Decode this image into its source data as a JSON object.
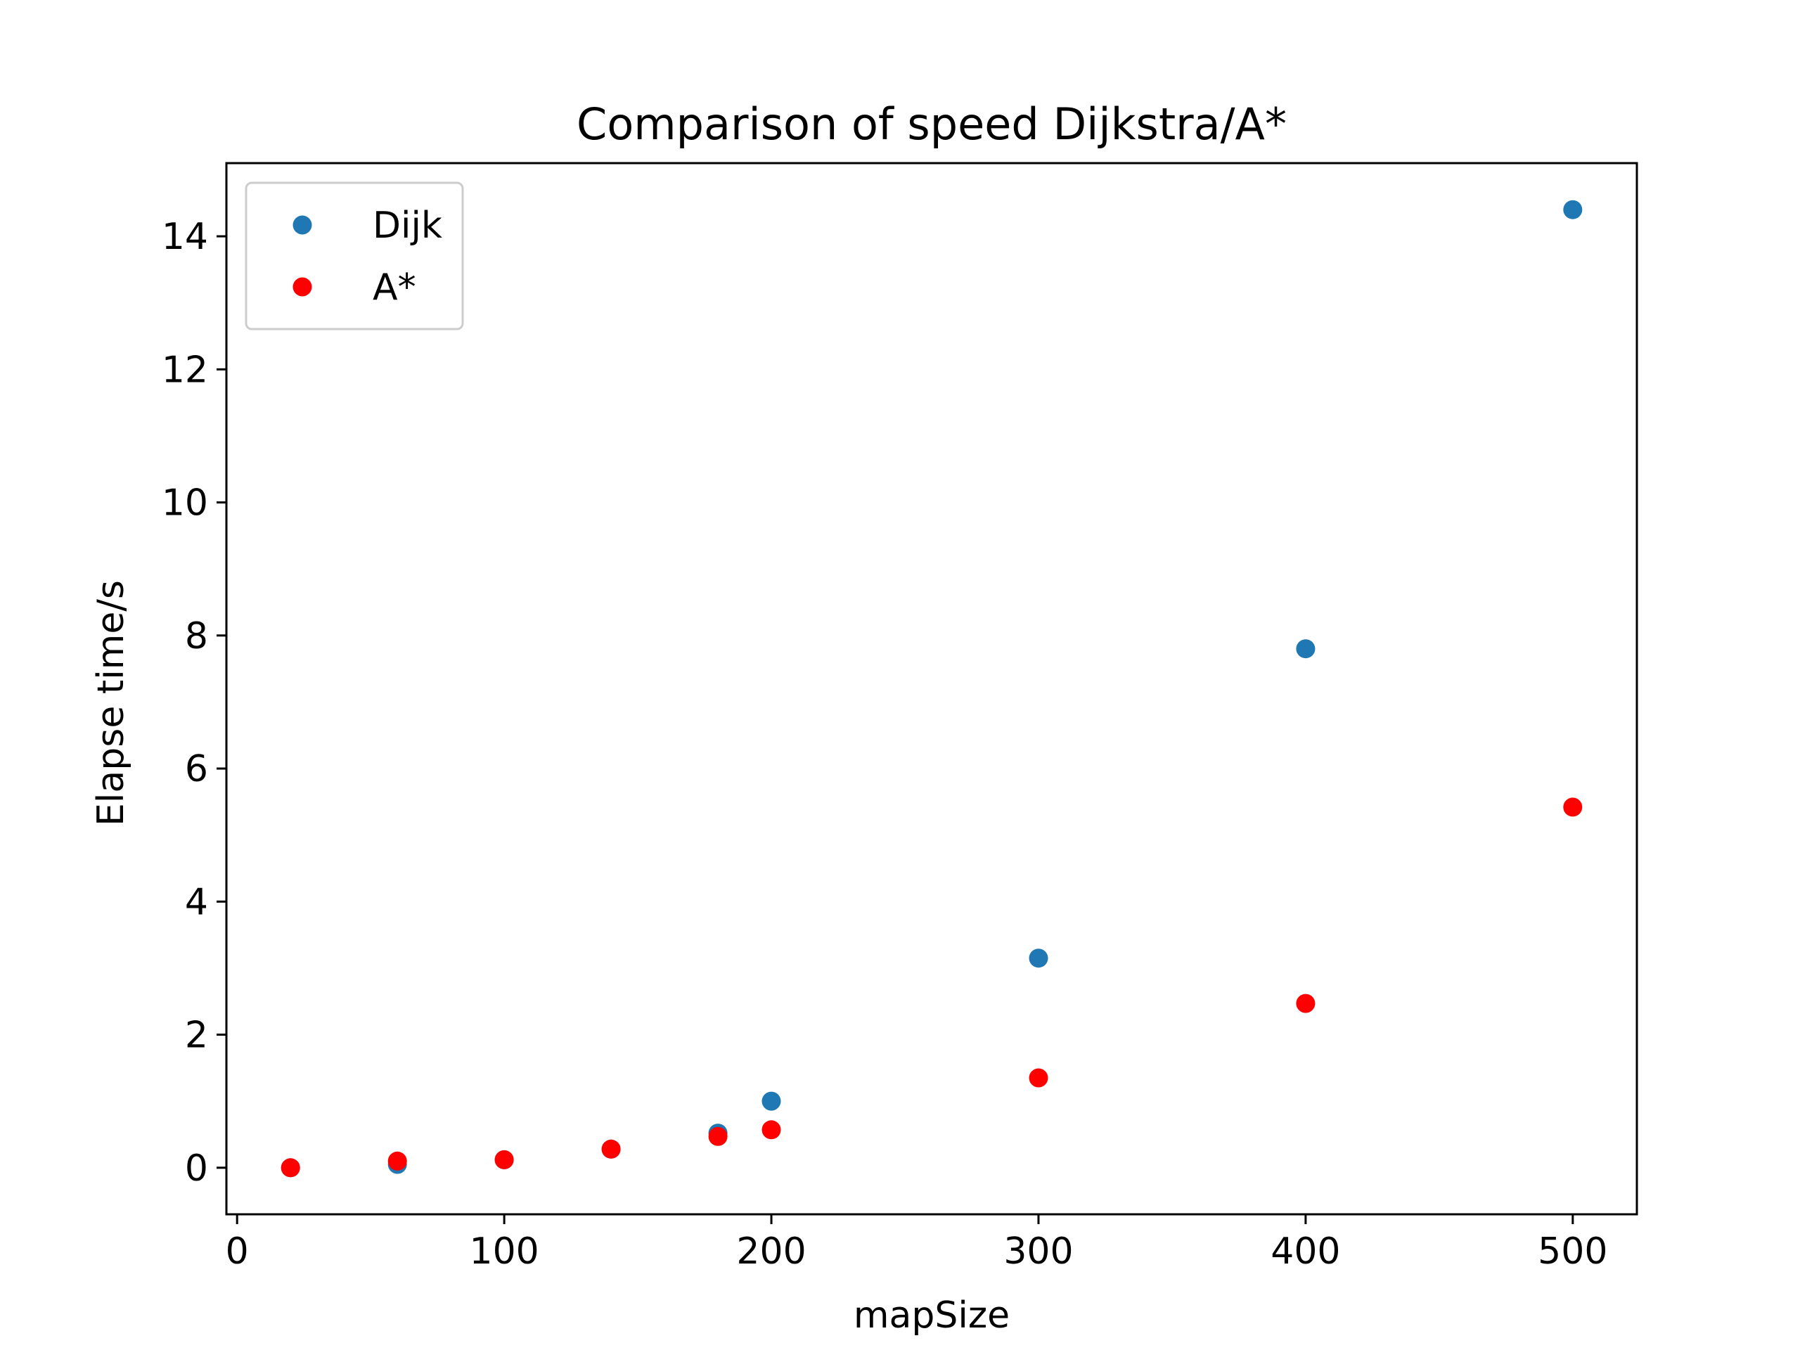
{
  "chart_data": {
    "type": "scatter",
    "title": "Comparison of speed Dijkstra/A*",
    "xlabel": "mapSize",
    "ylabel": "Elapse time/s",
    "xlim": [
      -4,
      524
    ],
    "ylim": [
      -0.7,
      15.1
    ],
    "xticks": [
      0,
      100,
      200,
      300,
      400,
      500
    ],
    "yticks": [
      0,
      2,
      4,
      6,
      8,
      10,
      12,
      14
    ],
    "grid": false,
    "legend_position": "top-left",
    "series": [
      {
        "name": "Dijk",
        "color": "#1f77b4",
        "x": [
          20,
          60,
          100,
          140,
          180,
          200,
          300,
          400,
          500
        ],
        "y": [
          0.0,
          0.05,
          0.12,
          0.28,
          0.52,
          1.0,
          3.15,
          7.8,
          14.4
        ]
      },
      {
        "name": "A*",
        "color": "#ff0000",
        "x": [
          20,
          60,
          100,
          140,
          180,
          200,
          300,
          400,
          500
        ],
        "y": [
          0.0,
          0.1,
          0.12,
          0.28,
          0.47,
          0.57,
          1.35,
          2.47,
          5.42
        ]
      }
    ]
  }
}
